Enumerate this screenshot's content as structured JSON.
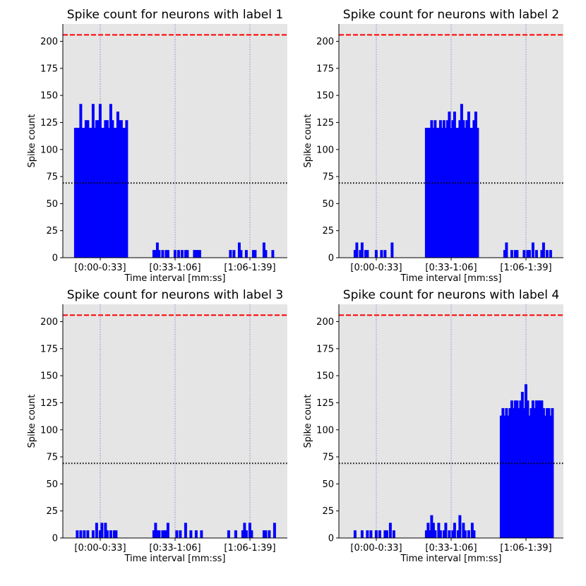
{
  "chart_data": [
    {
      "type": "bar",
      "title": "Spike count for neurons with label 1",
      "xlabel": "Time interval [mm:ss]",
      "ylabel": "Spike count",
      "ylim": [
        0,
        216
      ],
      "yticks": [
        "0",
        "25",
        "50",
        "75",
        "100",
        "125",
        "150",
        "175",
        "200"
      ],
      "xticks": [
        "[0:00-0:33]",
        "[0:33-1:06]",
        "[1:06-1:39]"
      ],
      "reference_lines": [
        {
          "style": "red-dashed",
          "y": 206
        },
        {
          "style": "black-dotted",
          "y": 69
        }
      ],
      "segments": [
        [
          120,
          120,
          120,
          142,
          120,
          120,
          127,
          127,
          120,
          120,
          142,
          120,
          127,
          127,
          142,
          120,
          120,
          127,
          127,
          120,
          142,
          127,
          120,
          120,
          135,
          127,
          127,
          120,
          120,
          127
        ],
        [
          0,
          0,
          7,
          7,
          14,
          7,
          0,
          7,
          0,
          7,
          7,
          0,
          0,
          0,
          7,
          0,
          7,
          0,
          7,
          0,
          7,
          7,
          0,
          0,
          0,
          7,
          7,
          7,
          7,
          0
        ],
        [
          0,
          0,
          0,
          7,
          0,
          7,
          0,
          0,
          14,
          7,
          0,
          0,
          7,
          0,
          0,
          0,
          7,
          7,
          0,
          0,
          0,
          0,
          14,
          7,
          0,
          0,
          0,
          7,
          0,
          0
        ]
      ]
    },
    {
      "type": "bar",
      "title": "Spike count for neurons with label 2",
      "xlabel": "Time interval [mm:ss]",
      "ylabel": "Spike count",
      "ylim": [
        0,
        216
      ],
      "yticks": [
        "0",
        "25",
        "50",
        "75",
        "100",
        "125",
        "150",
        "175",
        "200"
      ],
      "xticks": [
        "[0:00-0:33]",
        "[0:33-1:06]",
        "[1:06-1:39]"
      ],
      "reference_lines": [
        {
          "style": "red-dashed",
          "y": 206
        },
        {
          "style": "black-dotted",
          "y": 69
        }
      ],
      "segments": [
        [
          0,
          0,
          7,
          14,
          0,
          7,
          14,
          0,
          7,
          7,
          0,
          0,
          0,
          0,
          7,
          0,
          0,
          7,
          0,
          7,
          0,
          0,
          0,
          14,
          0,
          0,
          0,
          0,
          0,
          0
        ],
        [
          120,
          120,
          120,
          127,
          120,
          127,
          120,
          120,
          127,
          120,
          127,
          120,
          127,
          135,
          120,
          127,
          135,
          120,
          120,
          127,
          142,
          127,
          120,
          127,
          135,
          120,
          120,
          127,
          135,
          120
        ],
        [
          0,
          0,
          7,
          14,
          0,
          0,
          7,
          0,
          7,
          7,
          0,
          0,
          0,
          7,
          0,
          7,
          7,
          0,
          14,
          0,
          7,
          0,
          0,
          7,
          14,
          0,
          7,
          0,
          7,
          0
        ]
      ]
    },
    {
      "type": "bar",
      "title": "Spike count for neurons with label 3",
      "xlabel": "Time interval [mm:ss]",
      "ylabel": "Spike count",
      "ylim": [
        0,
        216
      ],
      "yticks": [
        "0",
        "25",
        "50",
        "75",
        "100",
        "125",
        "150",
        "175",
        "200"
      ],
      "xticks": [
        "[0:00-0:33]",
        "[0:33-1:06]",
        "[1:06-1:39]"
      ],
      "reference_lines": [
        {
          "style": "red-dashed",
          "y": 206
        },
        {
          "style": "black-dotted",
          "y": 69
        }
      ],
      "segments": [
        [
          0,
          7,
          0,
          7,
          0,
          7,
          0,
          7,
          0,
          0,
          7,
          0,
          14,
          0,
          7,
          14,
          0,
          14,
          7,
          0,
          7,
          0,
          7,
          7,
          0,
          0,
          0,
          0,
          0,
          0
        ],
        [
          0,
          0,
          7,
          14,
          7,
          7,
          0,
          7,
          7,
          7,
          14,
          0,
          0,
          0,
          0,
          7,
          0,
          7,
          0,
          0,
          14,
          0,
          0,
          7,
          0,
          0,
          7,
          0,
          0,
          7
        ],
        [
          0,
          0,
          7,
          0,
          0,
          0,
          7,
          0,
          0,
          0,
          7,
          14,
          7,
          0,
          14,
          7,
          0,
          0,
          0,
          0,
          0,
          0,
          7,
          7,
          0,
          7,
          0,
          0,
          14,
          0
        ]
      ]
    },
    {
      "type": "bar",
      "title": "Spike count for neurons with label 4",
      "xlabel": "Time interval [mm:ss]",
      "ylabel": "Spike count",
      "ylim": [
        0,
        216
      ],
      "yticks": [
        "0",
        "25",
        "50",
        "75",
        "100",
        "125",
        "150",
        "175",
        "200"
      ],
      "xticks": [
        "[0:00-0:33]",
        "[0:33-1:06]",
        "[1:06-1:39]"
      ],
      "reference_lines": [
        {
          "style": "red-dashed",
          "y": 206
        },
        {
          "style": "black-dotted",
          "y": 69
        }
      ],
      "segments": [
        [
          0,
          0,
          7,
          0,
          0,
          0,
          7,
          0,
          0,
          7,
          0,
          7,
          0,
          0,
          7,
          0,
          7,
          0,
          0,
          7,
          7,
          0,
          14,
          0,
          7,
          0,
          0,
          0,
          0,
          0
        ],
        [
          7,
          14,
          7,
          21,
          14,
          7,
          0,
          14,
          7,
          0,
          7,
          14,
          0,
          7,
          0,
          7,
          14,
          0,
          7,
          21,
          0,
          14,
          7,
          0,
          7,
          0,
          14,
          7,
          0,
          0
        ],
        [
          113,
          120,
          113,
          120,
          113,
          120,
          127,
          120,
          127,
          127,
          120,
          127,
          135,
          120,
          142,
          127,
          113,
          120,
          127,
          120,
          127,
          127,
          127,
          127,
          120,
          113,
          120,
          120,
          113,
          120
        ]
      ]
    }
  ]
}
